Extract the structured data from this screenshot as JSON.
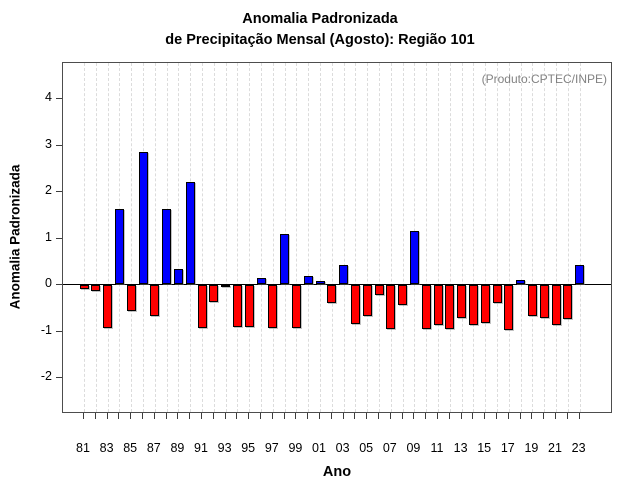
{
  "header": {
    "title_line1": "Anomalia Padronizada",
    "title_line2": "de Precipitação Mensal (Agosto): Região 101"
  },
  "chart_data": {
    "type": "bar",
    "title": "Anomalia Padronizada de Precipitação Mensal (Agosto): Região 101",
    "xlabel": "Ano",
    "ylabel": "Anomalia Padronizada",
    "annotation": "(Produto:CPTEC/INPE)",
    "ylim": [
      -2.7,
      4.8
    ],
    "grid": "vertical-dashed",
    "legend": "none",
    "ytick_labels": [
      "4",
      "3",
      "2",
      "1",
      "0",
      "-1",
      "-2"
    ],
    "ytick_values": [
      4,
      3,
      2,
      1,
      0,
      -1,
      -2
    ],
    "x_tick_labels": [
      "81",
      "83",
      "85",
      "87",
      "89",
      "91",
      "93",
      "95",
      "97",
      "99",
      "01",
      "03",
      "05",
      "07",
      "09",
      "11",
      "13",
      "15",
      "17",
      "19",
      "21",
      "23"
    ],
    "categories": [
      "81",
      "82",
      "83",
      "84",
      "85",
      "86",
      "87",
      "88",
      "89",
      "90",
      "91",
      "92",
      "93",
      "94",
      "95",
      "96",
      "97",
      "98",
      "99",
      "00",
      "01",
      "02",
      "03",
      "04",
      "05",
      "06",
      "07",
      "08",
      "09",
      "10",
      "11",
      "12",
      "13",
      "14",
      "15",
      "16",
      "17",
      "18",
      "19",
      "20",
      "21",
      "22",
      "23"
    ],
    "values": [
      -0.08,
      -0.13,
      -0.92,
      1.62,
      -0.55,
      2.83,
      -0.67,
      1.62,
      0.33,
      2.19,
      -0.92,
      -0.36,
      -0.05,
      -0.9,
      -0.9,
      0.13,
      -0.92,
      1.07,
      -0.92,
      0.17,
      0.07,
      -0.39,
      0.4,
      -0.83,
      -0.66,
      -0.21,
      -0.95,
      -0.44,
      1.13,
      -0.94,
      -0.87,
      -0.94,
      -0.7,
      -0.87,
      -0.82,
      -0.39,
      -0.97,
      0.09,
      -0.66,
      -0.72,
      -0.87,
      -0.74,
      0.4
    ],
    "colors": {
      "positive": "#0000ff",
      "negative": "#ff0000",
      "annotation_text": "#828282",
      "gridline": "#dcdcdc",
      "axis": "#000000"
    }
  }
}
